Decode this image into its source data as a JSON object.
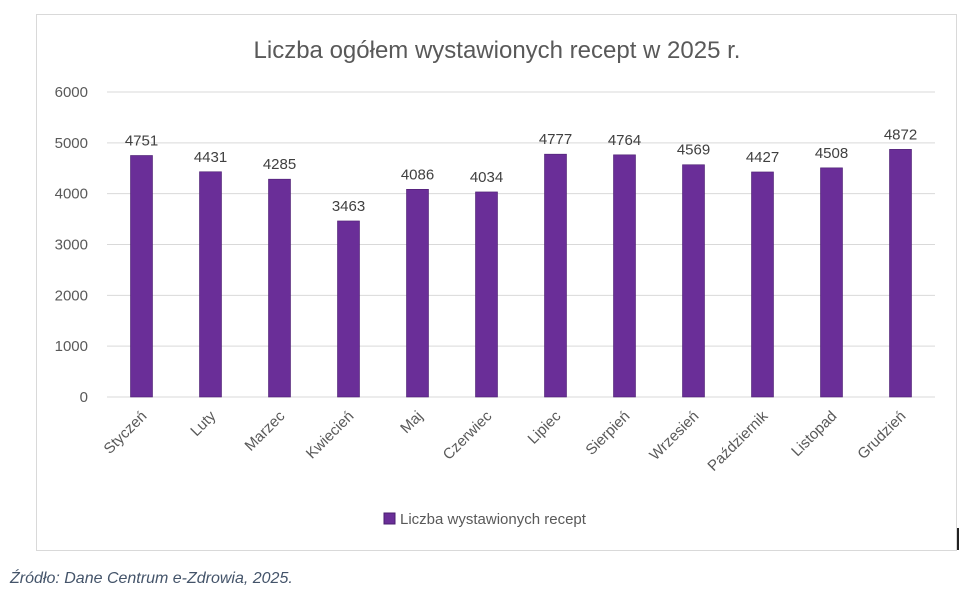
{
  "chart_data": {
    "type": "bar",
    "title": "Liczba ogółem wystawionych recept w 2025 r.",
    "xlabel": "",
    "ylabel": "",
    "ylim": [
      0,
      6000
    ],
    "yticks": [
      "0",
      "1000",
      "2000",
      "3000",
      "4000",
      "5000",
      "6000"
    ],
    "grid": true,
    "legend_position": "bottom",
    "categories": [
      "Styczeń",
      "Luty",
      "Marzec",
      "Kwiecień",
      "Maj",
      "Czerwiec",
      "Lipiec",
      "Sierpień",
      "Wrzesień",
      "Październik",
      "Listopad",
      "Grudzień"
    ],
    "series": [
      {
        "name": "Liczba wystawionych recept",
        "color": "#6a2e98",
        "values": [
          4751,
          4431,
          4285,
          3463,
          4086,
          4034,
          4777,
          4764,
          4569,
          4427,
          4508,
          4872
        ]
      }
    ]
  },
  "source": "Źródło: Dane Centrum e-Zdrowia, 2025."
}
